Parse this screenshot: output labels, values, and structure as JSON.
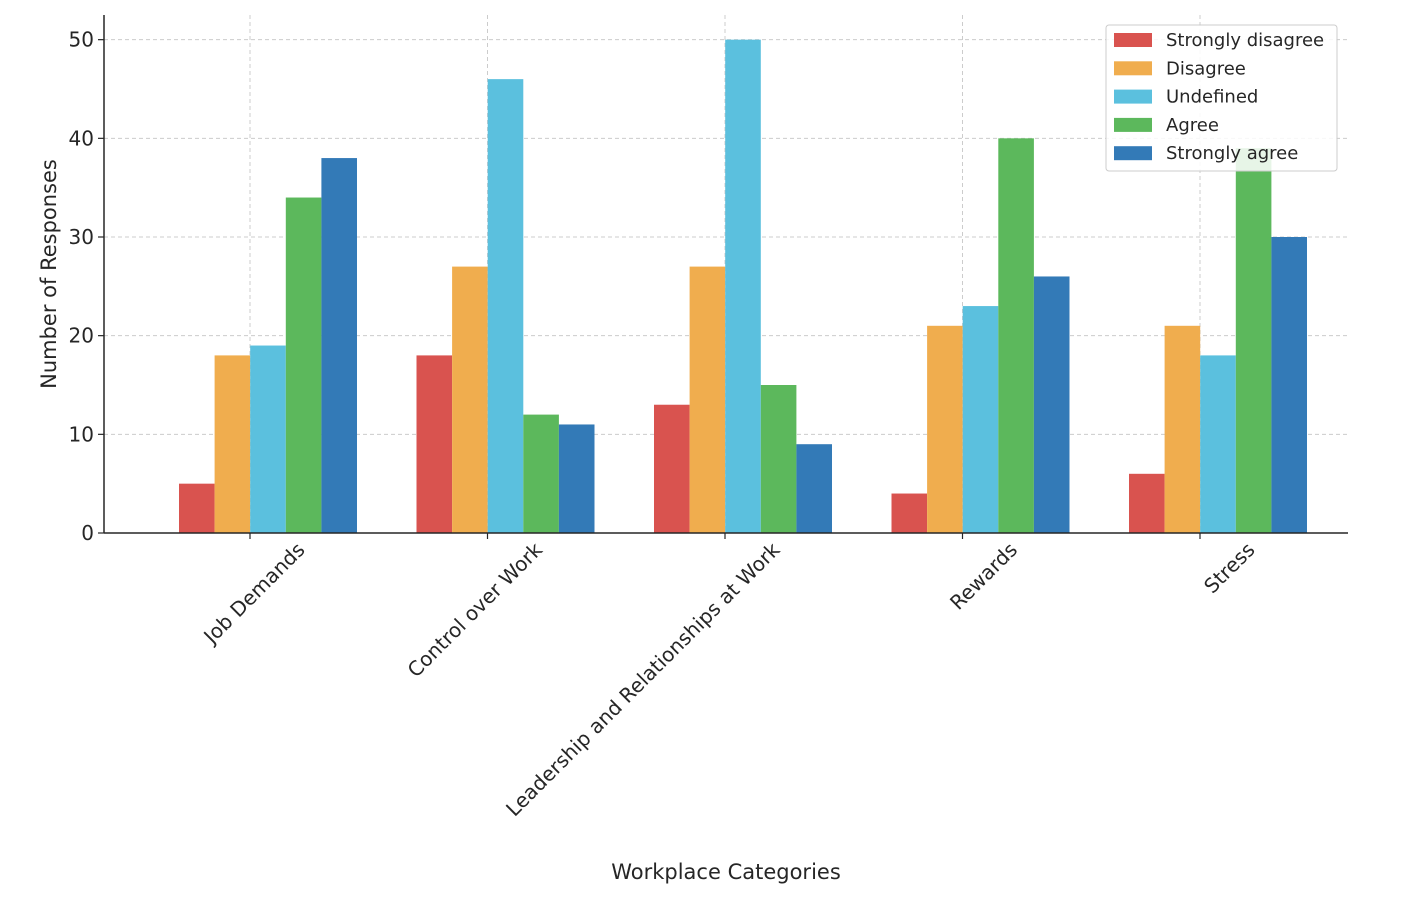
{
  "chart_data": {
    "type": "bar",
    "title": "",
    "xlabel": "Workplace Categories",
    "ylabel": "Number of Responses",
    "ylim": [
      0,
      52.5
    ],
    "yticks": [
      0,
      10,
      20,
      30,
      40,
      50
    ],
    "grid": true,
    "legend_position": "top-right",
    "categories": [
      "Job Demands",
      "Control over Work",
      "Leadership and Relationships at Work",
      "Rewards",
      "Stress"
    ],
    "series": [
      {
        "name": "Strongly disagree",
        "color": "#d9534f",
        "values": [
          5,
          18,
          13,
          4,
          6
        ]
      },
      {
        "name": "Disagree",
        "color": "#f0ad4e",
        "values": [
          18,
          27,
          27,
          21,
          21
        ]
      },
      {
        "name": "Undefined",
        "color": "#5bc0de",
        "values": [
          19,
          46,
          50,
          23,
          18
        ]
      },
      {
        "name": "Agree",
        "color": "#5cb85c",
        "values": [
          34,
          12,
          15,
          40,
          39
        ]
      },
      {
        "name": "Strongly agree",
        "color": "#337ab7",
        "values": [
          38,
          11,
          9,
          26,
          30
        ]
      }
    ]
  }
}
